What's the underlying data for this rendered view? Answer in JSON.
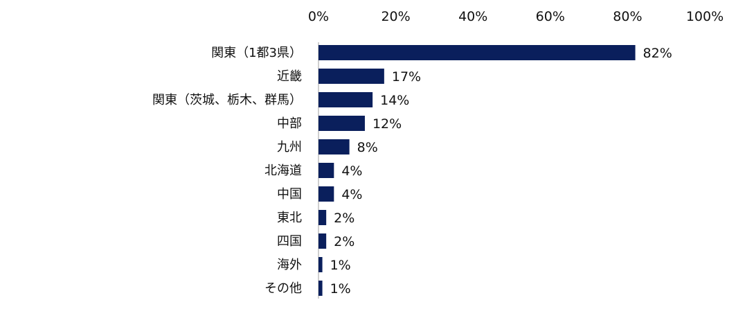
{
  "chart_data": {
    "type": "bar",
    "orientation": "horizontal",
    "categories": [
      "関東（1都3県）",
      "近畿",
      "関東（茨城、栃木、群馬）",
      "中部",
      "九州",
      "北海道",
      "中国",
      "東北",
      "四国",
      "海外",
      "その他"
    ],
    "values": [
      82,
      17,
      14,
      12,
      8,
      4,
      4,
      2,
      2,
      1,
      1
    ],
    "data_labels": [
      "82%",
      "17%",
      "14%",
      "12%",
      "8%",
      "4%",
      "4%",
      "2%",
      "2%",
      "1%",
      "1%"
    ],
    "xlim": [
      0,
      100
    ],
    "x_ticks": [
      0,
      20,
      40,
      60,
      80,
      100
    ],
    "x_tick_labels": [
      "0%",
      "20%",
      "40%",
      "60%",
      "80%",
      "100%"
    ],
    "x_axis_position": "top",
    "grid": false,
    "legend": "none",
    "bar_color": "#0a1f5c",
    "axis_color": "#bfbfbf"
  }
}
